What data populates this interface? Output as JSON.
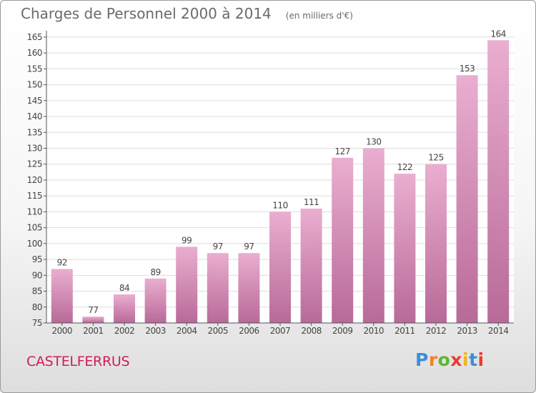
{
  "title": "Charges de Personnel 2000 à 2014",
  "subtitle": "(en milliers d'€)",
  "commune": "CASTELFERRUS",
  "logo": {
    "text": "Proxiti",
    "colors": [
      "#3a8fd9",
      "#f0822c",
      "#5db632",
      "#e63c2f",
      "#f0b41e",
      "#3a8fd9",
      "#e63c2f"
    ]
  },
  "colors": {
    "bar_top": "#eaaed0",
    "bar_bottom": "#b86a98",
    "axis": "#555555",
    "grid": "#dddddd",
    "label": "#444444"
  },
  "chart_data": {
    "type": "bar",
    "categories": [
      "2000",
      "2001",
      "2002",
      "2003",
      "2004",
      "2005",
      "2006",
      "2007",
      "2008",
      "2009",
      "2010",
      "2011",
      "2012",
      "2013",
      "2014"
    ],
    "values": [
      92,
      77,
      84,
      89,
      99,
      97,
      97,
      110,
      111,
      127,
      130,
      122,
      125,
      153,
      164
    ],
    "yticks": [
      75,
      80,
      85,
      90,
      95,
      100,
      105,
      110,
      115,
      120,
      125,
      130,
      135,
      140,
      145,
      150,
      155,
      160,
      165
    ],
    "ylim": [
      75,
      167
    ],
    "grid": true,
    "data_labels": true
  }
}
